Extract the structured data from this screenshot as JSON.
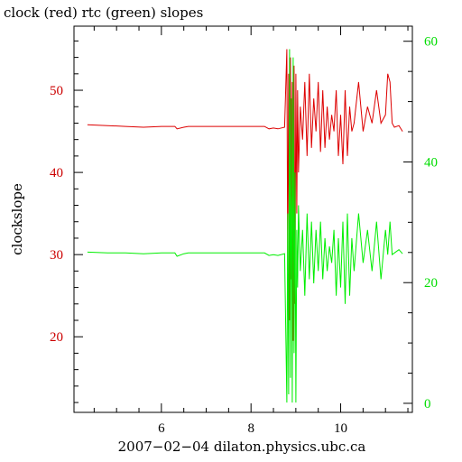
{
  "chart_data": {
    "type": "line",
    "title": "clock (red) rtc (green) slopes",
    "xlabel": "2007−02−04  dilaton.physics.ubc.ca",
    "ylabel_left": "clockslope",
    "ylabel_right": "",
    "xlim": [
      4.05,
      11.6
    ],
    "ylim_left": [
      10.8,
      57.8
    ],
    "ylim_right": [
      -1.5,
      62.5
    ],
    "x_ticks": [
      {
        "value": 6,
        "label": "6"
      },
      {
        "value": 8,
        "label": "8"
      },
      {
        "value": 10,
        "label": "10"
      }
    ],
    "y_left_ticks": [
      {
        "value": 20,
        "label": "20"
      },
      {
        "value": 30,
        "label": "30"
      },
      {
        "value": 40,
        "label": "40"
      },
      {
        "value": 50,
        "label": "50"
      }
    ],
    "y_right_ticks": [
      {
        "value": 0,
        "label": "0"
      },
      {
        "value": 20,
        "label": "20"
      },
      {
        "value": 40,
        "label": "40"
      },
      {
        "value": 60,
        "label": "60"
      }
    ],
    "colors": {
      "clock": "#dd0000",
      "rtc": "#00ee00",
      "left_axis_labels": "#cc0000",
      "right_axis_labels": "#00dd00",
      "frame": "#000000"
    },
    "series": [
      {
        "axis": "left",
        "color": "#dd0000",
        "x": [
          4.35,
          4.8,
          5.2,
          5.6,
          6.0,
          6.3,
          6.35,
          6.5,
          6.6,
          7.0,
          7.5,
          8.0,
          8.3,
          8.4,
          8.5,
          8.6,
          8.75,
          8.8,
          8.82,
          8.84,
          8.86,
          8.88,
          8.9,
          8.92,
          8.94,
          8.96,
          8.98,
          9.0,
          9.02,
          9.04,
          9.06,
          9.1,
          9.15,
          9.2,
          9.25,
          9.3,
          9.35,
          9.4,
          9.45,
          9.5,
          9.55,
          9.6,
          9.65,
          9.7,
          9.75,
          9.8,
          9.85,
          9.9,
          9.95,
          10.0,
          10.05,
          10.1,
          10.15,
          10.2,
          10.25,
          10.3,
          10.4,
          10.5,
          10.6,
          10.7,
          10.8,
          10.9,
          11.0,
          11.05,
          11.1,
          11.15,
          11.2,
          11.3,
          11.38
        ],
        "y": [
          45.8,
          45.7,
          45.6,
          45.5,
          45.6,
          45.6,
          45.3,
          45.5,
          45.6,
          45.6,
          45.6,
          45.6,
          45.6,
          45.3,
          45.4,
          45.3,
          45.5,
          55.0,
          28.0,
          52.0,
          22.0,
          54.0,
          27.0,
          51.0,
          19.5,
          53.0,
          24.0,
          52.0,
          35.0,
          50.0,
          40.0,
          48.0,
          44.0,
          51.0,
          42.0,
          52.0,
          43.0,
          49.0,
          45.0,
          51.0,
          42.5,
          50.0,
          43.0,
          48.0,
          44.0,
          47.0,
          45.0,
          50.0,
          42.0,
          47.0,
          41.0,
          50.0,
          42.0,
          48.0,
          45.0,
          46.0,
          51.0,
          45.0,
          48.0,
          46.0,
          50.0,
          46.0,
          47.0,
          52.0,
          51.0,
          46.0,
          45.5,
          45.7,
          45.0
        ]
      },
      {
        "axis": "left",
        "color": "#00ee00",
        "x": [
          4.35,
          4.8,
          5.2,
          5.6,
          6.0,
          6.3,
          6.35,
          6.5,
          6.6,
          7.0,
          7.5,
          8.0,
          8.3,
          8.4,
          8.5,
          8.6,
          8.75,
          8.8,
          8.82,
          8.84,
          8.86,
          8.88,
          8.9,
          8.92,
          8.94,
          8.96,
          8.98,
          9.0,
          9.02,
          9.04,
          9.06,
          9.1,
          9.15,
          9.2,
          9.25,
          9.3,
          9.35,
          9.4,
          9.45,
          9.5,
          9.55,
          9.6,
          9.65,
          9.7,
          9.75,
          9.8,
          9.85,
          9.9,
          9.95,
          10.0,
          10.05,
          10.1,
          10.15,
          10.2,
          10.25,
          10.3,
          10.4,
          10.5,
          10.6,
          10.7,
          10.8,
          10.9,
          11.0,
          11.05,
          11.1,
          11.15,
          11.2,
          11.3,
          11.38
        ],
        "y": [
          30.3,
          30.2,
          30.2,
          30.1,
          30.2,
          30.2,
          29.8,
          30.1,
          30.2,
          30.2,
          30.2,
          30.2,
          30.2,
          29.9,
          30.0,
          29.9,
          30.1,
          12.0,
          35.0,
          13.0,
          55.0,
          15.0,
          49.0,
          12.0,
          54.0,
          18.0,
          40.0,
          12.0,
          33.0,
          26.0,
          36.0,
          28.0,
          33.0,
          25.0,
          35.0,
          27.0,
          34.0,
          26.5,
          33.0,
          28.0,
          34.0,
          27.0,
          32.0,
          28.0,
          31.0,
          29.0,
          33.0,
          25.0,
          32.0,
          26.0,
          34.0,
          24.0,
          35.0,
          25.0,
          32.0,
          28.0,
          35.0,
          29.0,
          33.0,
          28.0,
          34.0,
          27.0,
          33.0,
          30.0,
          34.0,
          30.0,
          30.2,
          30.6,
          30.1
        ]
      }
    ],
    "grid": false,
    "legend": "none"
  }
}
